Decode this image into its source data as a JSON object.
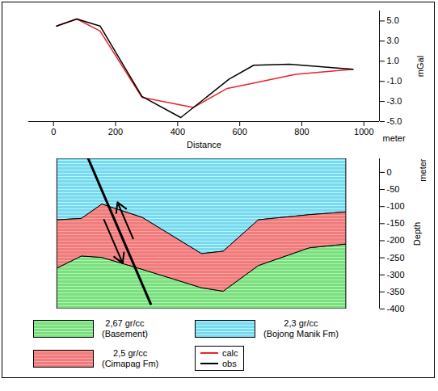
{
  "chart_data": [
    {
      "type": "line",
      "x_label": "Distance",
      "x_unit": "meter",
      "y_label": "mGal",
      "xlim": [
        -80,
        1050
      ],
      "xticks": [
        0,
        200,
        400,
        600,
        800,
        1000
      ],
      "ylim": [
        -5,
        6
      ],
      "yticks": [
        {
          "value": 5,
          "label": "5.0"
        },
        {
          "value": 3,
          "label": "3.0"
        },
        {
          "value": 1,
          "label": "1.0"
        },
        {
          "value": -1,
          "label": "-1.0"
        },
        {
          "value": -3,
          "label": "-3.0"
        },
        {
          "value": -5,
          "label": "-5.0"
        }
      ],
      "legend": "bottom",
      "series": [
        {
          "name": "calc",
          "color": "#e8242b",
          "x": [
            10,
            75,
            150,
            285,
            450,
            560,
            640,
            780,
            965
          ],
          "values": [
            4.5,
            5.2,
            4.0,
            -2.6,
            -3.6,
            -1.7,
            -1.2,
            -0.3,
            0.2
          ]
        },
        {
          "name": "obs",
          "color": "#000000",
          "x": [
            10,
            75,
            150,
            285,
            410,
            565,
            645,
            760,
            965
          ],
          "values": [
            4.5,
            5.2,
            4.5,
            -2.5,
            -4.6,
            -0.8,
            0.6,
            0.7,
            0.2
          ]
        }
      ]
    },
    {
      "type": "cross_section",
      "y_label": "Depth",
      "y_unit": "meter",
      "tick_labels": "y",
      "xlim": [
        -80,
        1050
      ],
      "ylim": [
        -400,
        40
      ],
      "yticks": [
        0,
        -50,
        -100,
        -150,
        -200,
        -250,
        -300,
        -350,
        -400
      ],
      "x": [
        13,
        91,
        157,
        287,
        478,
        548,
        661,
        825,
        943
      ],
      "layers": [
        {
          "density_label": "2,67 gr/cc",
          "label": "(Basement)",
          "color": "#7fdc82",
          "top": [
            -281,
            -246,
            -250,
            -285,
            -339,
            -349,
            -274,
            -222,
            -211
          ],
          "bottom": [
            -400,
            -400,
            -400,
            -400,
            -400,
            -400,
            -400,
            -400,
            -400
          ]
        },
        {
          "density_label": "2,3 gr/cc",
          "label": "(Bojong Manik Fm)",
          "color": "#7fd6ee",
          "top": [
            40,
            40,
            40,
            40,
            40,
            40,
            40,
            40,
            40
          ],
          "bottom": [
            -140,
            -136,
            -94,
            -133,
            -239,
            -232,
            -140,
            -125,
            -117
          ]
        },
        {
          "density_label": "2,5 gr/cc",
          "label": "(Cimapag Fm)",
          "color": "#ef7d7d",
          "top": [
            -140,
            -136,
            -94,
            -133,
            -239,
            -232,
            -140,
            -125,
            -117
          ],
          "bottom": [
            -281,
            -246,
            -250,
            -285,
            -339,
            -349,
            -274,
            -222,
            -211
          ]
        }
      ],
      "fault": {
        "x": [
          112,
          313
        ],
        "y": [
          40,
          -385
        ]
      }
    }
  ]
}
